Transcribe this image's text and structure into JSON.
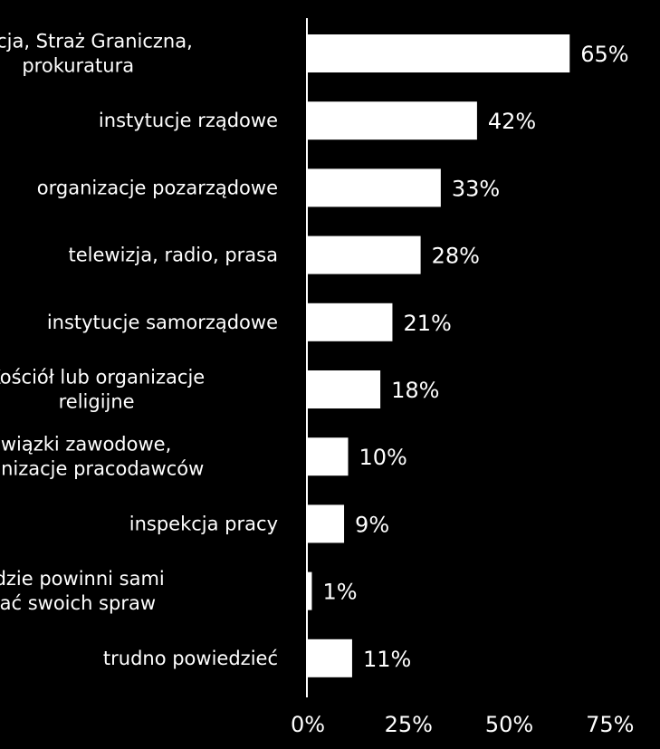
{
  "colors": {
    "background": "#000000",
    "bar": "#ffffff",
    "text": "#ffffff"
  },
  "chart_data": {
    "type": "bar",
    "orientation": "horizontal",
    "categories": [
      [
        "Policja, Straż Graniczna,",
        "prokuratura"
      ],
      [
        "instytucje rządowe"
      ],
      [
        "organizacje pozarządowe"
      ],
      [
        "telewizja, radio, prasa"
      ],
      [
        "instytucje samorządowe"
      ],
      [
        "Kościół lub organizacje",
        "religijne"
      ],
      [
        "związki zawodowe,",
        "organizacje pracodawców"
      ],
      [
        "inspekcja pracy"
      ],
      [
        "nikt, ludzie powinni sami",
        "pilnować swoich spraw"
      ],
      [
        "trudno powiedzieć"
      ]
    ],
    "values": [
      65,
      42,
      33,
      28,
      21,
      18,
      10,
      9,
      1,
      11
    ],
    "value_labels": [
      "65%",
      "42%",
      "33%",
      "28%",
      "21%",
      "18%",
      "10%",
      "9%",
      "1%",
      "11%"
    ],
    "xlim": [
      0,
      75
    ],
    "x_ticks": [
      0,
      25,
      50,
      75
    ],
    "x_tick_labels": [
      "0%",
      "25%",
      "50%",
      "75%"
    ],
    "title": "",
    "xlabel": "",
    "ylabel": "",
    "grid": false,
    "legend": "none"
  }
}
